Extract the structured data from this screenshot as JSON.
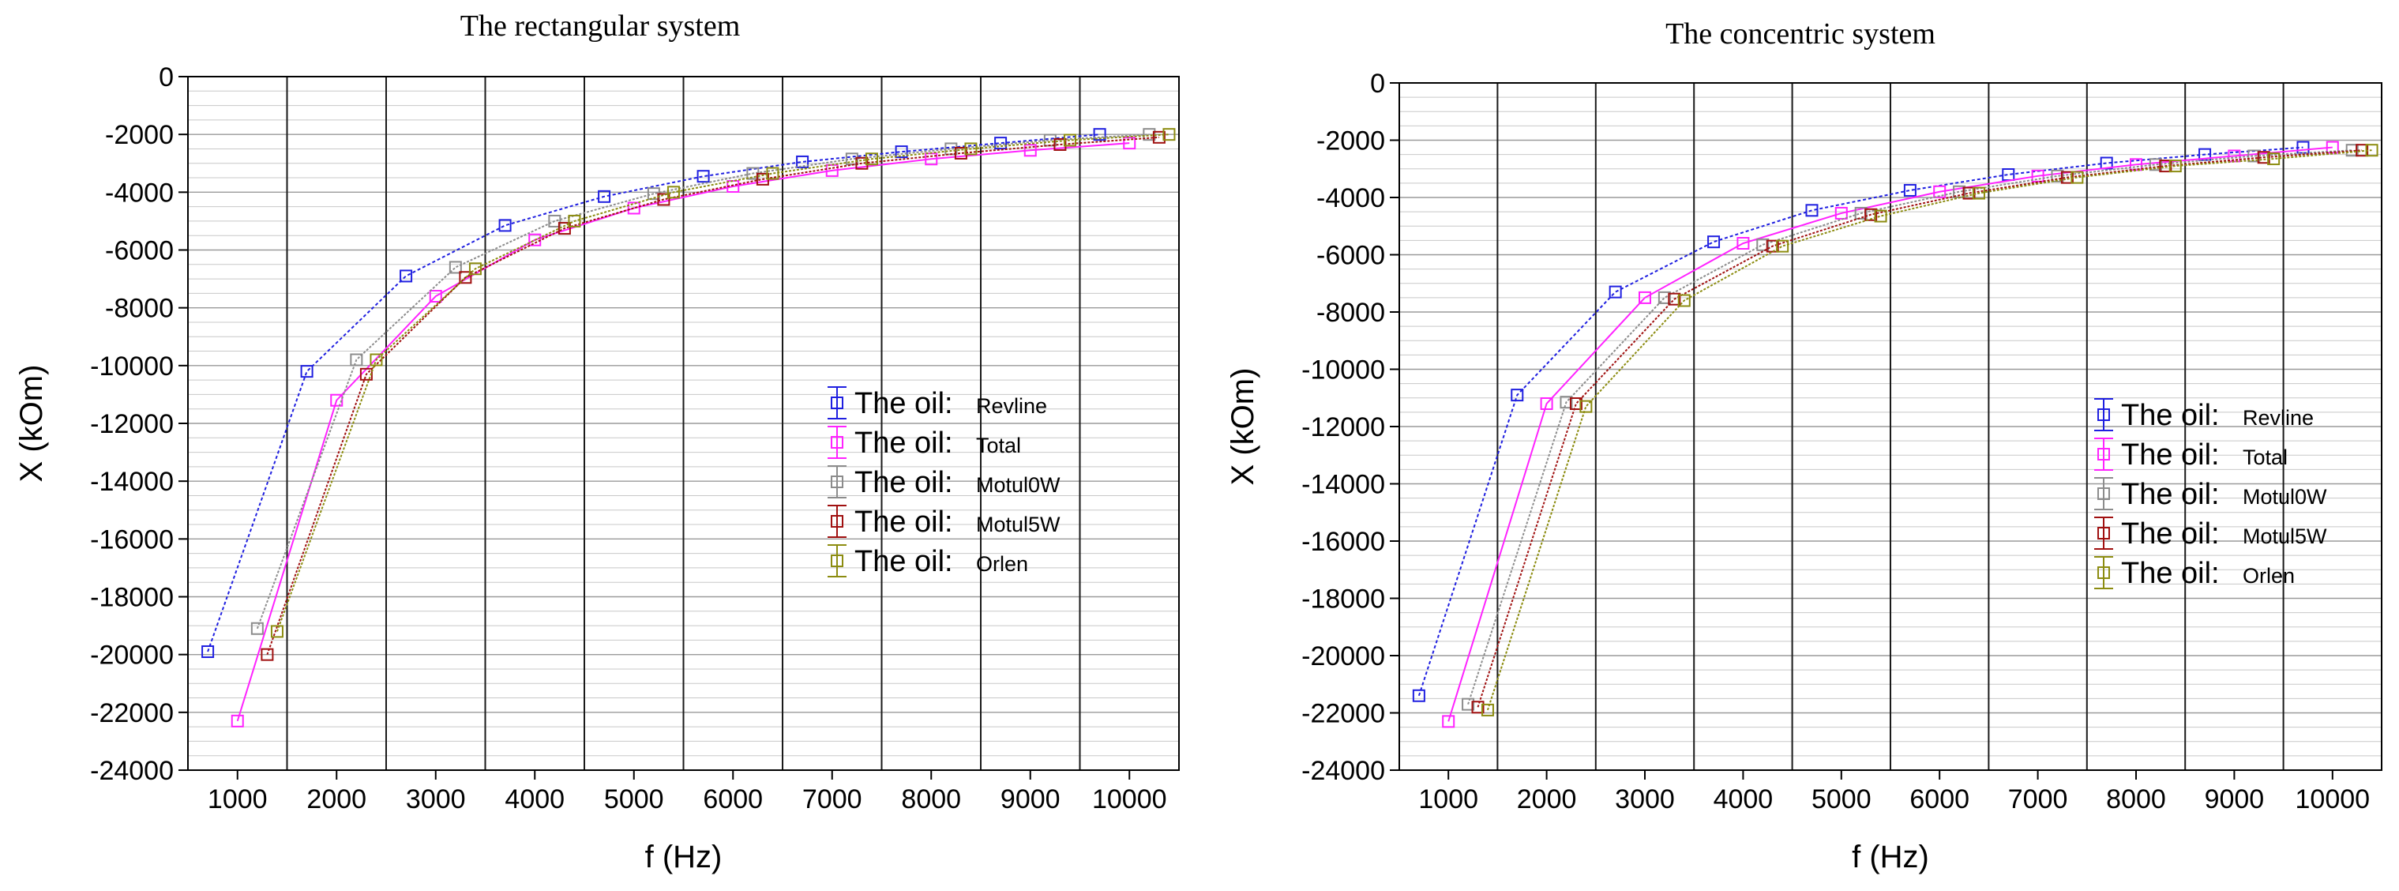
{
  "chart_data": [
    {
      "type": "line",
      "title": "The rectangular system",
      "xlabel": "f (Hz)",
      "ylabel": "X (kOm)",
      "xlim": [
        500,
        10500
      ],
      "ylim": [
        -24000,
        0
      ],
      "x_ticks": [
        1000,
        2000,
        3000,
        4000,
        5000,
        6000,
        7000,
        8000,
        9000,
        10000
      ],
      "x_tick_labels": [
        "1000",
        "2000",
        "3000",
        "4000",
        "5000",
        "6000",
        "7000",
        "8000",
        "9000",
        "10000"
      ],
      "y_ticks": [
        0,
        -2000,
        -4000,
        -6000,
        -8000,
        -10000,
        -12000,
        -14000,
        -16000,
        -18000,
        -20000,
        -22000,
        -24000
      ],
      "y_tick_labels": [
        "0",
        "-2000",
        "-4000",
        "-6000",
        "-8000",
        "-10000",
        "-12000",
        "-14000",
        "-16000",
        "-18000",
        "-20000",
        "-22000",
        "-24000"
      ],
      "vertical_gridlines_at": [
        1500,
        2500,
        3500,
        4500,
        5500,
        6500,
        7500,
        8500,
        9500
      ],
      "legend_position": "center-right",
      "legend_prefix": "The oil:",
      "series": [
        {
          "name": "Revline",
          "color": "#1f1fe0",
          "points": [
            [
              700,
              -19900
            ],
            [
              1700,
              -10200
            ],
            [
              2700,
              -6900
            ],
            [
              3700,
              -5150
            ],
            [
              4700,
              -4150
            ],
            [
              5700,
              -3450
            ],
            [
              6700,
              -2950
            ],
            [
              7700,
              -2600
            ],
            [
              8700,
              -2300
            ],
            [
              9700,
              -2000
            ]
          ]
        },
        {
          "name": "Total",
          "color": "#ff22ff",
          "points": [
            [
              1000,
              -22300
            ],
            [
              2000,
              -11200
            ],
            [
              3000,
              -7600
            ],
            [
              4000,
              -5650
            ],
            [
              5000,
              -4550
            ],
            [
              6000,
              -3800
            ],
            [
              7000,
              -3250
            ],
            [
              8000,
              -2850
            ],
            [
              9000,
              -2550
            ],
            [
              10000,
              -2300
            ]
          ]
        },
        {
          "name": "Motul0W",
          "color": "#8c8c8c",
          "points": [
            [
              1200,
              -19100
            ],
            [
              2200,
              -9800
            ],
            [
              3200,
              -6600
            ],
            [
              4200,
              -5000
            ],
            [
              5200,
              -4050
            ],
            [
              6200,
              -3350
            ],
            [
              7200,
              -2850
            ],
            [
              8200,
              -2500
            ],
            [
              9200,
              -2200
            ],
            [
              10200,
              -2000
            ]
          ]
        },
        {
          "name": "Motul5W",
          "color": "#a01010",
          "points": [
            [
              1300,
              -20000
            ],
            [
              2300,
              -10300
            ],
            [
              3300,
              -6950
            ],
            [
              4300,
              -5250
            ],
            [
              5300,
              -4250
            ],
            [
              6300,
              -3550
            ],
            [
              7300,
              -3000
            ],
            [
              8300,
              -2650
            ],
            [
              9300,
              -2350
            ],
            [
              10300,
              -2100
            ]
          ]
        },
        {
          "name": "Orlen",
          "color": "#8c8c10",
          "points": [
            [
              1400,
              -19200
            ],
            [
              2400,
              -9800
            ],
            [
              3400,
              -6650
            ],
            [
              4400,
              -5000
            ],
            [
              5400,
              -4000
            ],
            [
              6400,
              -3350
            ],
            [
              7400,
              -2850
            ],
            [
              8400,
              -2500
            ],
            [
              9400,
              -2200
            ],
            [
              10400,
              -2000
            ]
          ]
        }
      ]
    },
    {
      "type": "line",
      "title": "The concentric system",
      "xlabel": "f (Hz)",
      "ylabel": "X (kOm)",
      "xlim": [
        500,
        10500
      ],
      "ylim": [
        -24000,
        0
      ],
      "x_ticks": [
        1000,
        2000,
        3000,
        4000,
        5000,
        6000,
        7000,
        8000,
        9000,
        10000
      ],
      "x_tick_labels": [
        "1000",
        "2000",
        "3000",
        "4000",
        "5000",
        "6000",
        "7000",
        "8000",
        "9000",
        "10000"
      ],
      "y_ticks": [
        0,
        -2000,
        -4000,
        -6000,
        -8000,
        -10000,
        -12000,
        -14000,
        -16000,
        -18000,
        -20000,
        -22000,
        -24000
      ],
      "y_tick_labels": [
        "0",
        "-2000",
        "-4000",
        "-6000",
        "-8000",
        "-10000",
        "-12000",
        "-14000",
        "-16000",
        "-18000",
        "-20000",
        "-22000",
        "-24000"
      ],
      "vertical_gridlines_at": [
        1500,
        2500,
        3500,
        4500,
        5500,
        6500,
        7500,
        8500,
        9500
      ],
      "legend_position": "center-right",
      "legend_prefix": "The oil:",
      "series": [
        {
          "name": "Revline",
          "color": "#1f1fe0",
          "points": [
            [
              700,
              -21400
            ],
            [
              1700,
              -10900
            ],
            [
              2700,
              -7300
            ],
            [
              3700,
              -5550
            ],
            [
              4700,
              -4450
            ],
            [
              5700,
              -3750
            ],
            [
              6700,
              -3200
            ],
            [
              7700,
              -2800
            ],
            [
              8700,
              -2500
            ],
            [
              9700,
              -2250
            ]
          ]
        },
        {
          "name": "Total",
          "color": "#ff22ff",
          "points": [
            [
              1000,
              -22300
            ],
            [
              2000,
              -11200
            ],
            [
              3000,
              -7500
            ],
            [
              4000,
              -5600
            ],
            [
              5000,
              -4550
            ],
            [
              6000,
              -3800
            ],
            [
              7000,
              -3250
            ],
            [
              8000,
              -2850
            ],
            [
              9000,
              -2550
            ],
            [
              10000,
              -2250
            ]
          ]
        },
        {
          "name": "Motul0W",
          "color": "#8c8c8c",
          "points": [
            [
              1200,
              -21700
            ],
            [
              2200,
              -11150
            ],
            [
              3200,
              -7500
            ],
            [
              4200,
              -5650
            ],
            [
              5200,
              -4550
            ],
            [
              6200,
              -3800
            ],
            [
              7200,
              -3250
            ],
            [
              8200,
              -2850
            ],
            [
              9200,
              -2550
            ],
            [
              10200,
              -2350
            ]
          ]
        },
        {
          "name": "Motul5W",
          "color": "#a01010",
          "points": [
            [
              1300,
              -21800
            ],
            [
              2300,
              -11200
            ],
            [
              3300,
              -7550
            ],
            [
              4300,
              -5700
            ],
            [
              5300,
              -4600
            ],
            [
              6300,
              -3850
            ],
            [
              7300,
              -3300
            ],
            [
              8300,
              -2900
            ],
            [
              9300,
              -2600
            ],
            [
              10300,
              -2350
            ]
          ]
        },
        {
          "name": "Orlen",
          "color": "#8c8c10",
          "points": [
            [
              1400,
              -21900
            ],
            [
              2400,
              -11300
            ],
            [
              3400,
              -7600
            ],
            [
              4400,
              -5700
            ],
            [
              5400,
              -4650
            ],
            [
              6400,
              -3850
            ],
            [
              7400,
              -3300
            ],
            [
              8400,
              -2900
            ],
            [
              9400,
              -2650
            ],
            [
              10400,
              -2350
            ]
          ]
        }
      ]
    }
  ]
}
